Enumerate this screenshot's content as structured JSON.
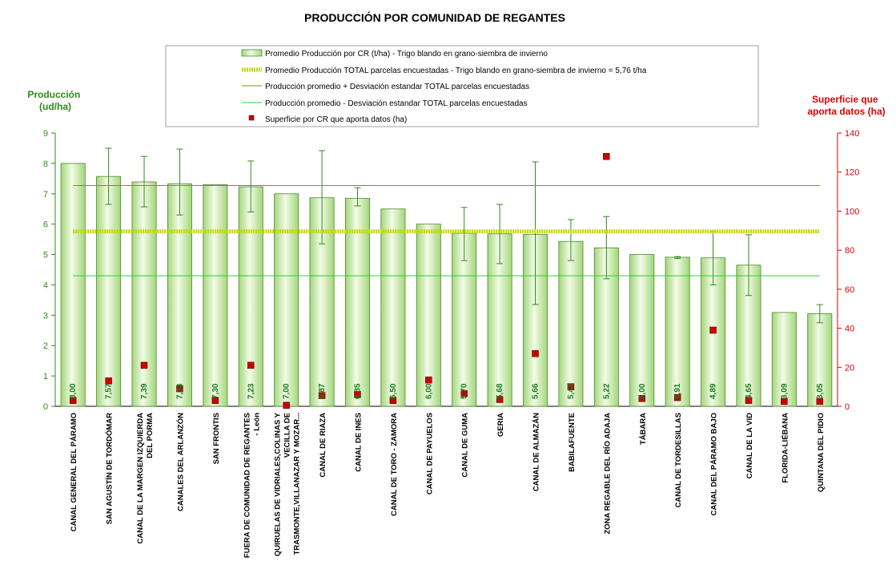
{
  "chart_data": {
    "type": "bar",
    "title": "PRODUCCIÓN POR COMUNIDAD DE REGANTES",
    "ylabel": [
      "Producción",
      "(ud/ha)"
    ],
    "y2label": [
      "Superficie que",
      "aporta datos (ha)"
    ],
    "ylim": [
      0,
      9
    ],
    "y2lim": [
      0,
      140
    ],
    "yticks": [
      "0",
      "1",
      "2",
      "3",
      "4",
      "5",
      "6",
      "7",
      "8",
      "9"
    ],
    "y2ticks": [
      "0",
      "20",
      "40",
      "60",
      "80",
      "100",
      "120",
      "140"
    ],
    "grid": false,
    "legend_position": "top",
    "colors": {
      "bar_fill_light": "#f2fbe8",
      "bar_fill_dark": "#a3d67a",
      "bar_stroke": "#4c8a2e",
      "error_bar": "#2e8b1a",
      "total_avg_line": "#c4d600",
      "plus_std_line": "#8b8b1a",
      "minus_std_line": "#33cc33",
      "surface_marker": "#cc0000",
      "ylabel_color": "#2e8b1a",
      "y2label_color": "#e00000",
      "data_label_color": "#1a7a1a"
    },
    "legend": [
      {
        "key": "bar",
        "label": "Promedio Producción por CR (t/ha) - Trigo blando en grano-siembra de invierno"
      },
      {
        "key": "total_avg",
        "label": "Promedio Producción TOTAL parcelas encuestadas - Trigo blando en grano-siembra de invierno = 5,76 t/ha"
      },
      {
        "key": "plus_std",
        "label": "Producción promedio + Desviación estandar TOTAL parcelas encuestadas"
      },
      {
        "key": "minus_std",
        "label": "Producción promedio - Desviación estandar TOTAL parcelas encuestadas"
      },
      {
        "key": "surface",
        "label": "Superficie por CR que aporta datos (ha)"
      }
    ],
    "reference_lines": {
      "total_avg": 5.76,
      "plus_std": 7.27,
      "minus_std": 4.3
    },
    "categories": [
      [
        "CANAL GENERAL DEL PÁRAMO"
      ],
      [
        "SAN AGUSTÍN DE TORDÓMAR"
      ],
      [
        "CANAL DE LA MARGEN IZQUIERDA",
        "DEL PORMA"
      ],
      [
        "CANALES DEL ARLANZÓN"
      ],
      [
        "SAN FRONTIS"
      ],
      [
        "FUERA DE COMUNIDAD DE REGANTES",
        "- León"
      ],
      [
        "QUIRUELAS DE VIDRIALES,COLINAS Y",
        "VECILLA DE",
        "TRASMONTE,VILLANAZAR Y MOZAR..."
      ],
      [
        "CANAL DE RIAZA"
      ],
      [
        "CANAL DE INES"
      ],
      [
        "CANAL DE TORO - ZAMORA"
      ],
      [
        "CANAL DE PAYUELOS"
      ],
      [
        "CANAL DE GUMA"
      ],
      [
        "GERIA"
      ],
      [
        "CANAL DE ALMAZÁN"
      ],
      [
        "BABILAFUENTE"
      ],
      [
        "ZONA REGABLE DEL RÍO ADAJA"
      ],
      [
        "TÁBARA"
      ],
      [
        "CANAL DE TORDESILLAS"
      ],
      [
        "CANAL DEL PÁRAMO BAJO"
      ],
      [
        "CANAL DE LA VID"
      ],
      [
        "FLORIDA-LIÉBANA"
      ],
      [
        "QUINTANA DEL PIDIO"
      ]
    ],
    "values": [
      8.0,
      7.57,
      7.39,
      7.33,
      7.3,
      7.23,
      7.0,
      6.87,
      6.85,
      6.5,
      6.0,
      5.7,
      5.68,
      5.66,
      5.43,
      5.22,
      5.0,
      4.91,
      4.89,
      4.65,
      3.09,
      3.05
    ],
    "value_labels": [
      "8,00",
      "7,57",
      "7,39",
      "7,33",
      "7,30",
      "7,23",
      "7,00",
      "6,87",
      "6,85",
      "6,50",
      "6,00",
      "5,70",
      "5,68",
      "5,66",
      "5,43",
      "5,22",
      "5,00",
      "4,91",
      "4,89",
      "4,65",
      "3,09",
      "3,05"
    ],
    "error_bars": [
      null,
      [
        6.65,
        8.5
      ],
      [
        6.57,
        8.23
      ],
      [
        6.3,
        8.47
      ],
      null,
      [
        6.4,
        8.08
      ],
      null,
      [
        5.35,
        8.42
      ],
      [
        6.6,
        7.2
      ],
      null,
      null,
      [
        4.8,
        6.55
      ],
      [
        4.7,
        6.65
      ],
      [
        3.35,
        8.05
      ],
      [
        4.8,
        6.15
      ],
      [
        4.2,
        6.25
      ],
      null,
      [
        4.87,
        4.93
      ],
      [
        4.0,
        5.75
      ],
      [
        3.65,
        5.65
      ],
      null,
      [
        2.75,
        3.35
      ]
    ],
    "surface_ha": [
      3,
      13,
      21,
      9,
      3,
      21,
      0.5,
      5.5,
      6,
      3,
      13.5,
      6.5,
      3.5,
      27,
      10,
      128,
      4,
      4.5,
      39,
      3,
      2.5,
      2.5
    ]
  }
}
